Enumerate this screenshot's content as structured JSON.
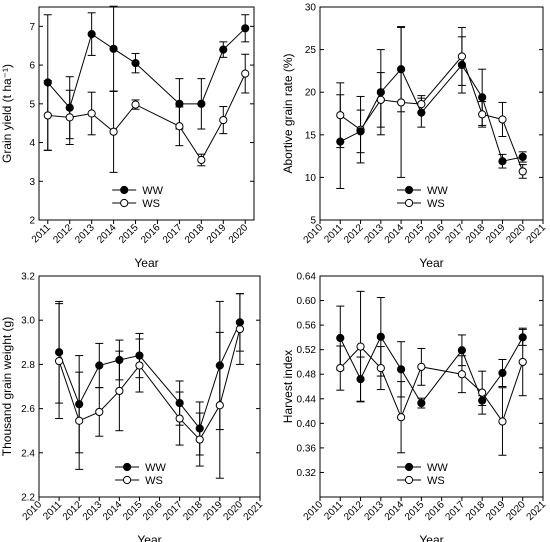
{
  "chart_data": [
    {
      "type": "line",
      "xlabel": "Year",
      "ylabel": "Grain yield (t ha⁻¹)",
      "xlim": [
        2011,
        2020
      ],
      "ylim": [
        2,
        7.5
      ],
      "x_ticks": [
        2011,
        2012,
        2013,
        2014,
        2015,
        2016,
        2017,
        2018,
        2019,
        2020
      ],
      "y_ticks": [
        2,
        3,
        4,
        5,
        6,
        7
      ],
      "legend": "bottom-center",
      "grid": false,
      "series": [
        {
          "name": "WW",
          "marker": "filled-circle",
          "color": "#000000",
          "x": [
            2011,
            2012,
            2013,
            2014,
            2015,
            2017,
            2018,
            2019,
            2020
          ],
          "values": [
            5.55,
            4.9,
            6.8,
            6.42,
            6.05,
            5.0,
            5.0,
            6.4,
            6.95
          ],
          "err": [
            1.75,
            0.8,
            0.55,
            1.1,
            0.25,
            0.65,
            0.65,
            0.2,
            0.35
          ]
        },
        {
          "name": "WS",
          "marker": "open-circle",
          "color": "#000000",
          "x": [
            2011,
            2012,
            2013,
            2014,
            2015,
            2017,
            2018,
            2019,
            2020
          ],
          "values": [
            4.7,
            4.65,
            4.75,
            4.28,
            4.98,
            4.42,
            3.55,
            4.58,
            5.78
          ],
          "err": [
            0.9,
            0.7,
            0.55,
            1.05,
            0.12,
            0.5,
            0.15,
            0.35,
            0.5
          ]
        }
      ]
    },
    {
      "type": "line",
      "xlabel": "Year",
      "ylabel": "Abortive grain rate (%)",
      "xlim": [
        2010,
        2021
      ],
      "ylim": [
        5,
        30
      ],
      "x_ticks": [
        2010,
        2011,
        2012,
        2013,
        2014,
        2015,
        2016,
        2017,
        2018,
        2019,
        2020,
        2021
      ],
      "y_ticks": [
        5,
        10,
        15,
        20,
        25,
        30
      ],
      "legend": "bottom-center",
      "grid": false,
      "series": [
        {
          "name": "WW",
          "marker": "filled-circle",
          "color": "#000000",
          "x": [
            2011,
            2012,
            2013,
            2014,
            2015,
            2017,
            2018,
            2019,
            2020
          ],
          "values": [
            14.2,
            15.4,
            20.0,
            22.7,
            17.6,
            23.2,
            19.4,
            11.9,
            12.4
          ],
          "err": [
            5.5,
            2.5,
            5.0,
            5.0,
            1.7,
            3.3,
            3.3,
            0.8,
            0.6
          ]
        },
        {
          "name": "WS",
          "marker": "open-circle",
          "color": "#000000",
          "x": [
            2011,
            2012,
            2013,
            2014,
            2015,
            2017,
            2018,
            2019,
            2020
          ],
          "values": [
            17.3,
            15.6,
            19.1,
            18.8,
            18.6,
            24.2,
            17.4,
            16.8,
            10.7
          ],
          "err": [
            3.8,
            3.9,
            3.2,
            8.8,
            1.0,
            3.4,
            1.5,
            2.0,
            0.8
          ]
        }
      ]
    },
    {
      "type": "line",
      "xlabel": "Year",
      "ylabel": "Thousand grain weight (g)",
      "xlim": [
        2010,
        2021
      ],
      "ylim": [
        2.2,
        3.2
      ],
      "x_ticks": [
        2010,
        2011,
        2012,
        2013,
        2014,
        2015,
        2016,
        2017,
        2018,
        2019,
        2020,
        2021
      ],
      "y_ticks": [
        2.2,
        2.4,
        2.6,
        2.8,
        3.0,
        3.2
      ],
      "legend": "bottom-center",
      "grid": false,
      "series": [
        {
          "name": "WW",
          "marker": "filled-circle",
          "color": "#000000",
          "x": [
            2011,
            2012,
            2013,
            2014,
            2015,
            2017,
            2018,
            2019,
            2020
          ],
          "values": [
            2.855,
            2.62,
            2.795,
            2.82,
            2.84,
            2.625,
            2.51,
            2.795,
            2.99
          ],
          "err": [
            0.23,
            0.22,
            0.1,
            0.09,
            0.1,
            0.1,
            0.12,
            0.29,
            0.13
          ]
        },
        {
          "name": "WS",
          "marker": "open-circle",
          "color": "#000000",
          "x": [
            2011,
            2012,
            2013,
            2014,
            2015,
            2017,
            2018,
            2019,
            2020
          ],
          "values": [
            2.815,
            2.545,
            2.585,
            2.68,
            2.795,
            2.555,
            2.46,
            2.615,
            2.96
          ],
          "err": [
            0.26,
            0.22,
            0.11,
            0.18,
            0.12,
            0.12,
            0.12,
            0.33,
            0.16
          ]
        }
      ]
    },
    {
      "type": "line",
      "xlabel": "Year",
      "ylabel": "Harvest index",
      "xlim": [
        2010,
        2021
      ],
      "ylim": [
        0.28,
        0.64
      ],
      "x_ticks": [
        2010,
        2011,
        2012,
        2013,
        2014,
        2015,
        2016,
        2017,
        2018,
        2019,
        2020,
        2021
      ],
      "y_ticks": [
        0.32,
        0.36,
        0.4,
        0.44,
        0.48,
        0.52,
        0.56,
        0.6,
        0.64
      ],
      "legend": "bottom-center",
      "grid": false,
      "series": [
        {
          "name": "WW",
          "marker": "filled-circle",
          "color": "#000000",
          "x": [
            2011,
            2012,
            2013,
            2014,
            2015,
            2017,
            2018,
            2019,
            2020
          ],
          "values": [
            0.539,
            0.472,
            0.541,
            0.488,
            0.433,
            0.519,
            0.437,
            0.482,
            0.54
          ],
          "err": [
            0.052,
            0.036,
            0.064,
            0.045,
            0.008,
            0.025,
            0.008,
            0.022,
            0.013
          ]
        },
        {
          "name": "WS",
          "marker": "open-circle",
          "color": "#000000",
          "x": [
            2011,
            2012,
            2013,
            2014,
            2015,
            2017,
            2018,
            2019,
            2020
          ],
          "values": [
            0.49,
            0.525,
            0.49,
            0.41,
            0.492,
            0.48,
            0.45,
            0.403,
            0.5
          ],
          "err": [
            0.036,
            0.09,
            0.035,
            0.058,
            0.03,
            0.03,
            0.035,
            0.055,
            0.055
          ]
        }
      ]
    }
  ]
}
